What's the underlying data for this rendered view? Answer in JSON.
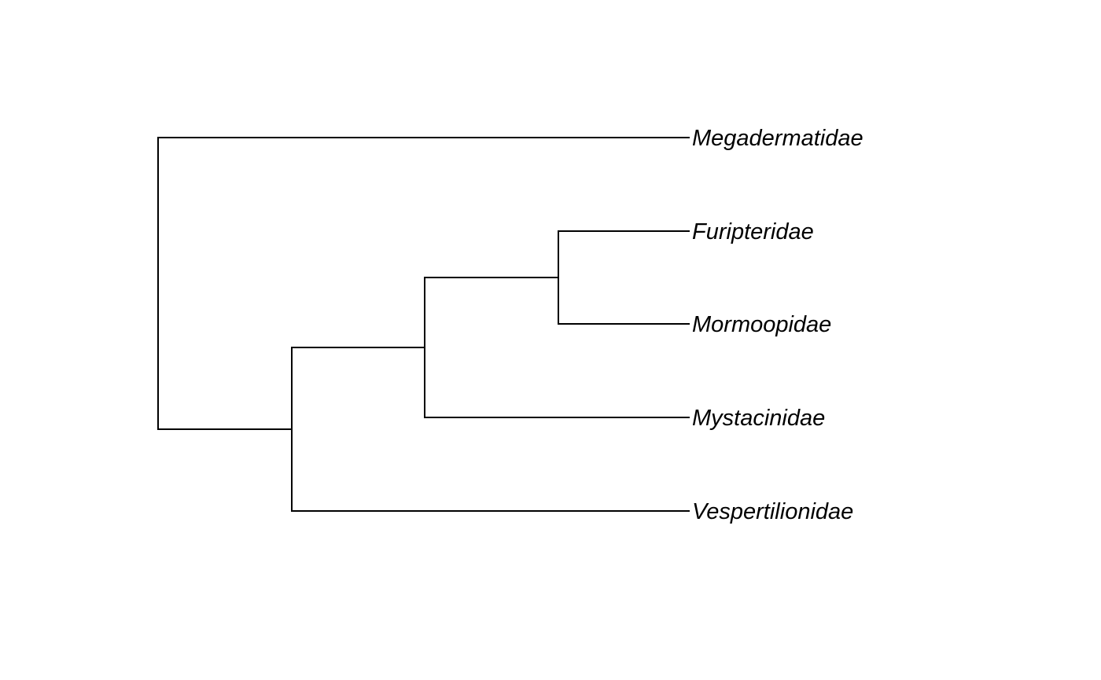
{
  "tree": {
    "tips": [
      {
        "id": "megadermatidae",
        "label": "Megadermatidae"
      },
      {
        "id": "furipteridae",
        "label": "Furipteridae"
      },
      {
        "id": "mormoopidae",
        "label": "Mormoopidae"
      },
      {
        "id": "mystacinidae",
        "label": "Mystacinidae"
      },
      {
        "id": "vespertilionidae",
        "label": "Vespertilionidae"
      }
    ],
    "nodes": [
      {
        "id": "root",
        "children": [
          "megadermatidae",
          "n1"
        ]
      },
      {
        "id": "n1",
        "children": [
          "n2",
          "vespertilionidae"
        ]
      },
      {
        "id": "n2",
        "children": [
          "n3",
          "mystacinidae"
        ]
      },
      {
        "id": "n3",
        "children": [
          "furipteridae",
          "mormoopidae"
        ]
      }
    ],
    "line_color": "#000000",
    "label_color": "#000000"
  }
}
